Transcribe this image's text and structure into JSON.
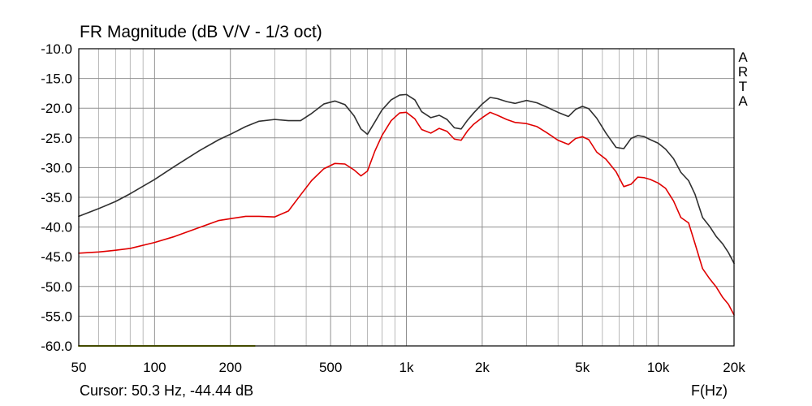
{
  "chart_data": {
    "type": "line",
    "title": "FR Magnitude (dB V/V - 1/3 oct)",
    "xlabel": "F(Hz)",
    "ylabel": "",
    "x_scale": "log",
    "xlim": [
      50,
      20000
    ],
    "ylim": [
      -60,
      -10
    ],
    "grid": true,
    "x_ticks": [
      50,
      100,
      200,
      500,
      1000,
      2000,
      5000,
      10000,
      20000
    ],
    "x_tick_labels": [
      "50",
      "100",
      "200",
      "500",
      "1k",
      "2k",
      "5k",
      "10k",
      "20k"
    ],
    "y_ticks": [
      -10,
      -15,
      -20,
      -25,
      -30,
      -35,
      -40,
      -45,
      -50,
      -55,
      -60
    ],
    "y_tick_labels": [
      "-10.0",
      "-15.0",
      "-20.0",
      "-25.0",
      "-30.0",
      "-35.0",
      "-40.0",
      "-45.0",
      "-50.0",
      "-55.0",
      "-60.0"
    ],
    "colors": {
      "upper": "#303030",
      "lower": "#e00000",
      "reference": "#a8b800",
      "grid": "#a8a8a8",
      "axis": "#000000"
    },
    "series": [
      {
        "color": "#303030",
        "x": [
          50,
          60,
          70,
          80,
          100,
          120,
          150,
          180,
          200,
          230,
          260,
          300,
          340,
          380,
          420,
          470,
          520,
          570,
          620,
          660,
          700,
          750,
          800,
          870,
          940,
          1000,
          1080,
          1150,
          1250,
          1350,
          1450,
          1550,
          1650,
          1750,
          1850,
          2000,
          2150,
          2300,
          2500,
          2700,
          3000,
          3300,
          3600,
          4000,
          4400,
          4700,
          5000,
          5300,
          5700,
          6200,
          6800,
          7300,
          7800,
          8300,
          8800,
          9300,
          10000,
          10700,
          11500,
          12300,
          13200,
          14000,
          15000,
          16000,
          17000,
          18000,
          19000,
          20000
        ],
        "y": [
          -38.2,
          -36.9,
          -35.7,
          -34.4,
          -32,
          -29.8,
          -27.2,
          -25.3,
          -24.4,
          -23.1,
          -22.2,
          -21.9,
          -22.1,
          -22.1,
          -20.9,
          -19.3,
          -18.8,
          -19.4,
          -21.3,
          -23.5,
          -24.4,
          -22.3,
          -20.3,
          -18.6,
          -17.8,
          -17.7,
          -18.6,
          -20.6,
          -21.6,
          -21.2,
          -21.9,
          -23.3,
          -23.5,
          -22,
          -20.8,
          -19.3,
          -18.2,
          -18.4,
          -18.9,
          -19.2,
          -18.7,
          -19.1,
          -19.8,
          -20.7,
          -21.4,
          -20.2,
          -19.7,
          -20.1,
          -21.7,
          -24.2,
          -26.6,
          -26.8,
          -25.1,
          -24.6,
          -24.8,
          -25.3,
          -25.9,
          -26.9,
          -28.5,
          -30.8,
          -32.2,
          -34.5,
          -38.4,
          -39.9,
          -41.6,
          -42.8,
          -44.3,
          -46.1
        ]
      },
      {
        "color": "#e00000",
        "x": [
          50,
          60,
          70,
          80,
          100,
          120,
          150,
          180,
          200,
          230,
          260,
          300,
          340,
          380,
          420,
          470,
          520,
          570,
          620,
          660,
          700,
          750,
          800,
          870,
          940,
          1000,
          1080,
          1150,
          1250,
          1350,
          1450,
          1550,
          1650,
          1750,
          1850,
          2000,
          2150,
          2300,
          2500,
          2700,
          3000,
          3300,
          3600,
          4000,
          4400,
          4700,
          5000,
          5300,
          5700,
          6200,
          6800,
          7300,
          7800,
          8300,
          8800,
          9300,
          10000,
          10700,
          11500,
          12300,
          13200,
          14000,
          15000,
          16000,
          17000,
          18000,
          19000,
          20000
        ],
        "y": [
          -44.4,
          -44.2,
          -43.9,
          -43.6,
          -42.6,
          -41.6,
          -40.1,
          -38.9,
          -38.6,
          -38.2,
          -38.2,
          -38.3,
          -37.3,
          -34.6,
          -32.2,
          -30.2,
          -29.3,
          -29.4,
          -30.4,
          -31.4,
          -30.6,
          -27.2,
          -24.6,
          -22.1,
          -20.8,
          -20.7,
          -21.8,
          -23.6,
          -24.2,
          -23.4,
          -23.9,
          -25.2,
          -25.4,
          -23.8,
          -22.7,
          -21.6,
          -20.7,
          -21.2,
          -21.9,
          -22.4,
          -22.6,
          -23.1,
          -24.1,
          -25.4,
          -26.1,
          -25.1,
          -24.8,
          -25.3,
          -27.4,
          -28.6,
          -30.7,
          -33.2,
          -32.8,
          -31.6,
          -31.7,
          -32,
          -32.6,
          -33.5,
          -35.6,
          -38.4,
          -39.3,
          -42.8,
          -47,
          -48.7,
          -50.1,
          -51.8,
          -53,
          -54.8
        ]
      },
      {
        "color": "#a8b800",
        "x": [
          50,
          250
        ],
        "y": [
          -60,
          -60
        ]
      }
    ]
  },
  "labels": {
    "title": "FR Magnitude (dB V/V - 1/3 oct)",
    "cursor": "Cursor: 50.3 Hz, -44.44 dB",
    "xunit": "F(Hz)",
    "brand": [
      "A",
      "R",
      "T",
      "A"
    ]
  }
}
